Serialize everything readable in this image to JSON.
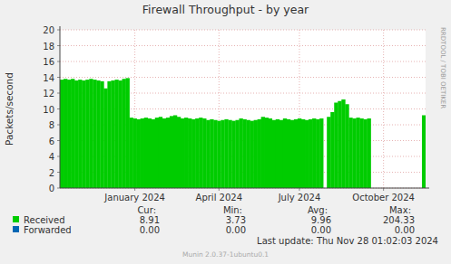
{
  "chart_data": {
    "type": "area",
    "title": "Firewall Throughput - by year",
    "y_label": "Packets/second",
    "watermark": "RRDTOOL / TOBI OETIKER",
    "last_update": "Last update: Thu Nov 28 01:02:03 2024",
    "footer": "Munin 2.0.37-1ubuntu0.1",
    "stat_headers": [
      "Cur:",
      "Min:",
      "Avg:",
      "Max:"
    ],
    "grid": true,
    "ylim": [
      0,
      20
    ],
    "yticks": [
      0,
      2,
      4,
      6,
      8,
      10,
      12,
      14,
      16,
      18,
      20
    ],
    "categories": [
      null,
      null,
      null,
      null,
      null,
      null,
      null,
      null,
      null,
      null,
      null,
      null,
      null,
      null,
      null,
      null,
      null,
      null,
      null,
      null,
      "January 2024",
      null,
      null,
      null,
      null,
      null,
      null,
      null,
      null,
      null,
      null,
      null,
      null,
      null,
      null,
      null,
      null,
      null,
      null,
      null,
      null,
      null,
      null,
      "April 2024",
      null,
      null,
      null,
      null,
      null,
      null,
      null,
      null,
      null,
      null,
      null,
      null,
      null,
      null,
      null,
      null,
      null,
      null,
      null,
      null,
      null,
      "July 2024",
      null,
      null,
      null,
      null,
      null,
      null,
      null,
      null,
      null,
      null,
      null,
      null,
      null,
      null,
      null,
      null,
      null,
      null,
      null,
      null,
      null,
      null,
      "October 2024",
      null,
      null,
      null,
      null,
      null,
      null,
      null,
      null,
      null,
      null,
      null
    ],
    "series": [
      {
        "name": "Received",
        "color": "#00cc00",
        "stats": [
          "8.91",
          "3.73",
          "9.96",
          "204.33"
        ],
        "values": [
          13.7,
          13.8,
          13.7,
          13.8,
          13.6,
          13.7,
          13.6,
          13.7,
          13.8,
          13.7,
          13.6,
          13.5,
          12.6,
          13.5,
          13.6,
          13.7,
          13.6,
          13.8,
          13.9,
          8.9,
          8.8,
          8.7,
          8.8,
          8.9,
          8.8,
          8.7,
          8.9,
          9.0,
          8.8,
          8.9,
          9.1,
          9.2,
          9.0,
          8.8,
          8.9,
          8.8,
          8.7,
          8.8,
          8.9,
          8.8,
          8.6,
          8.7,
          8.6,
          8.5,
          8.6,
          8.7,
          8.6,
          8.5,
          8.6,
          8.8,
          8.7,
          8.6,
          8.5,
          8.6,
          8.7,
          9.0,
          8.9,
          8.8,
          8.6,
          8.7,
          8.6,
          8.8,
          8.7,
          8.6,
          8.7,
          8.8,
          8.7,
          8.6,
          8.7,
          8.8,
          8.7,
          8.8,
          null,
          9.0,
          9.6,
          10.8,
          11.0,
          11.2,
          10.6,
          8.9,
          8.8,
          8.9,
          8.8,
          8.7,
          8.8,
          null,
          null,
          null,
          null,
          null,
          null,
          null,
          null,
          null,
          null,
          null,
          null,
          null,
          null,
          9.2
        ]
      },
      {
        "name": "Forwarded",
        "color": "#0066b3",
        "stats": [
          "0.00",
          "0.00",
          "0.00",
          "0.00"
        ],
        "values": [
          0,
          0,
          0,
          0,
          0,
          0,
          0,
          0,
          0,
          0,
          0,
          0,
          0,
          0,
          0,
          0,
          0,
          0,
          0,
          0,
          0,
          0,
          0,
          0,
          0,
          0,
          0,
          0,
          0,
          0,
          0,
          0,
          0,
          0,
          0,
          0,
          0,
          0,
          0,
          0,
          0,
          0,
          0,
          0,
          0,
          0,
          0,
          0,
          0,
          0,
          0,
          0,
          0,
          0,
          0,
          0,
          0,
          0,
          0,
          0,
          0,
          0,
          0,
          0,
          0,
          0,
          0,
          0,
          0,
          0,
          0,
          0,
          0,
          0,
          0,
          0,
          0,
          0,
          0,
          0,
          0,
          0,
          0,
          0,
          0,
          0,
          0,
          0,
          0,
          0,
          0,
          0,
          0,
          0,
          0,
          0,
          0,
          0,
          0,
          0
        ]
      }
    ]
  }
}
